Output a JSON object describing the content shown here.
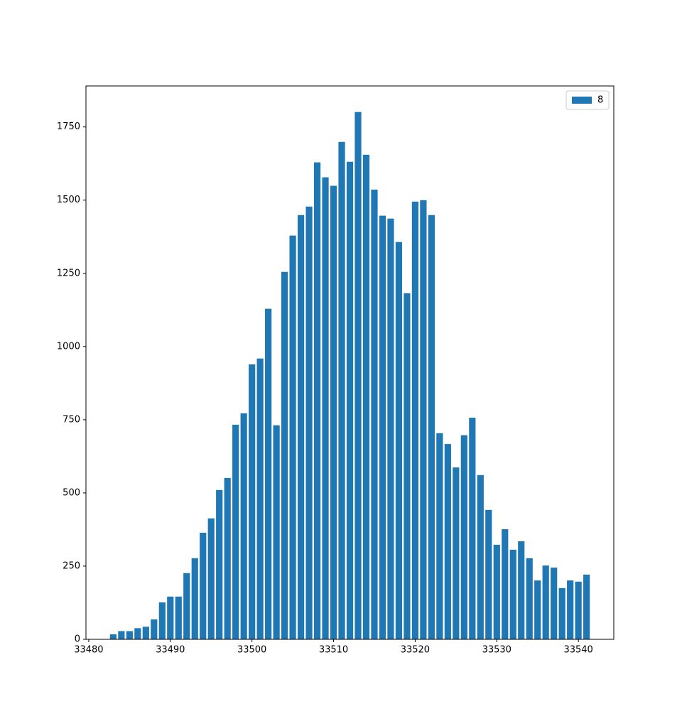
{
  "chart_data": {
    "type": "bar",
    "x": [
      33483,
      33484,
      33485,
      33486,
      33487,
      33488,
      33489,
      33490,
      33491,
      33492,
      33493,
      33494,
      33495,
      33496,
      33497,
      33498,
      33499,
      33500,
      33501,
      33502,
      33503,
      33504,
      33505,
      33506,
      33507,
      33508,
      33509,
      33510,
      33511,
      33512,
      33513,
      33514,
      33515,
      33516,
      33517,
      33518,
      33519,
      33520,
      33521,
      33522,
      33523,
      33524,
      33525,
      33526,
      33527,
      33528,
      33529,
      33530,
      33531,
      33532,
      33533,
      33534,
      33535,
      33536,
      33537,
      33538,
      33539,
      33540,
      33541
    ],
    "series": [
      {
        "name": "8",
        "color": "#1f77b4",
        "values": [
          17,
          28,
          28,
          38,
          43,
          68,
          126,
          146,
          146,
          226,
          277,
          364,
          413,
          510,
          551,
          733,
          772,
          939,
          959,
          1129,
          731,
          1255,
          1379,
          1449,
          1478,
          1629,
          1578,
          1549,
          1699,
          1631,
          1801,
          1655,
          1536,
          1447,
          1437,
          1357,
          1182,
          1495,
          1500,
          1449,
          704,
          667,
          587,
          697,
          757,
          561,
          442,
          323,
          376,
          306,
          335,
          277,
          201,
          252,
          245,
          175,
          201,
          197,
          221
        ]
      }
    ],
    "xlim": [
      33479.66,
      33544.34
    ],
    "xticks": [
      33480,
      33490,
      33500,
      33510,
      33520,
      33530,
      33540
    ],
    "ylim": [
      0,
      1890
    ],
    "yticks": [
      0,
      250,
      500,
      750,
      1000,
      1250,
      1500,
      1750
    ],
    "legend": "upper right"
  }
}
